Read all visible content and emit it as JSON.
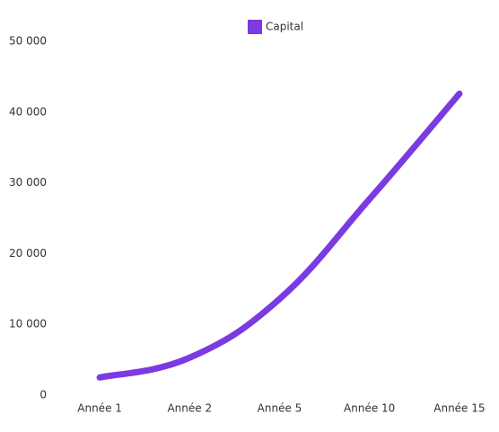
{
  "chart_data": {
    "type": "line",
    "categories": [
      "Année 1",
      "Année 2",
      "Année 5",
      "Année 10",
      "Année 15"
    ],
    "series": [
      {
        "name": "Capital",
        "color": "#7b3ae2",
        "values": [
          2500,
          5300,
          13600,
          27700,
          42600
        ]
      }
    ],
    "ylim": [
      0,
      50000
    ],
    "yticks": [
      0,
      {
        "value": 10000,
        "label": "10 000"
      },
      {
        "value": 20000,
        "label": "20 000"
      },
      {
        "value": 30000,
        "label": "30 000"
      },
      {
        "value": 40000,
        "label": "40 000"
      },
      {
        "value": 50000,
        "label": "50 000"
      }
    ],
    "grid": false,
    "legend": "top"
  }
}
